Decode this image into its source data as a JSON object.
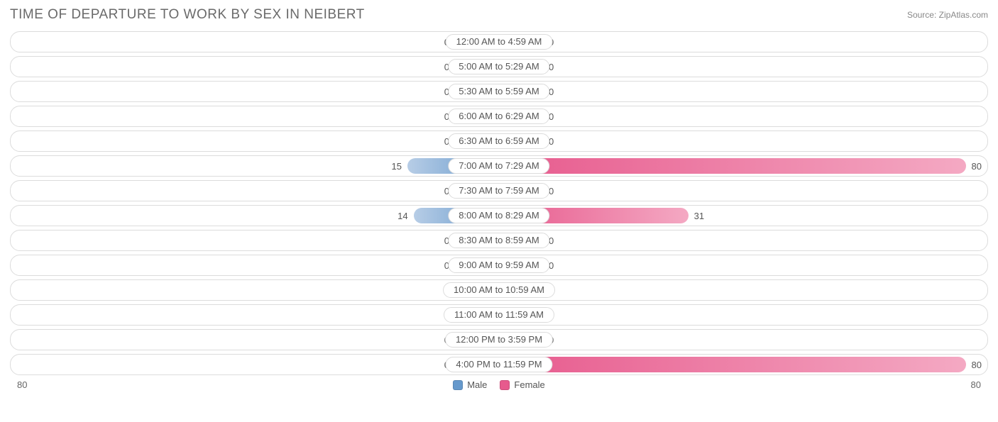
{
  "title": "TIME OF DEPARTURE TO WORK BY SEX IN NEIBERT",
  "source": "Source: ZipAtlas.com",
  "axis_max": 80,
  "axis_left_label": "80",
  "axis_right_label": "80",
  "colors": {
    "male_fill": "#6699cc",
    "male_fill_light": "#b7cde6",
    "female_fill": "#e75a8d",
    "female_fill_light": "#f4a9c3",
    "row_border": "#dcdcdc",
    "text": "#555555",
    "title_text": "#6a6a6a",
    "background": "#ffffff"
  },
  "legend": {
    "male": "Male",
    "female": "Female"
  },
  "min_bar_units": 5,
  "rows": [
    {
      "label": "12:00 AM to 4:59 AM",
      "male": 0,
      "female": 0
    },
    {
      "label": "5:00 AM to 5:29 AM",
      "male": 0,
      "female": 0
    },
    {
      "label": "5:30 AM to 5:59 AM",
      "male": 0,
      "female": 0
    },
    {
      "label": "6:00 AM to 6:29 AM",
      "male": 0,
      "female": 0
    },
    {
      "label": "6:30 AM to 6:59 AM",
      "male": 0,
      "female": 0
    },
    {
      "label": "7:00 AM to 7:29 AM",
      "male": 15,
      "female": 80
    },
    {
      "label": "7:30 AM to 7:59 AM",
      "male": 0,
      "female": 0
    },
    {
      "label": "8:00 AM to 8:29 AM",
      "male": 14,
      "female": 31
    },
    {
      "label": "8:30 AM to 8:59 AM",
      "male": 0,
      "female": 0
    },
    {
      "label": "9:00 AM to 9:59 AM",
      "male": 0,
      "female": 0
    },
    {
      "label": "10:00 AM to 10:59 AM",
      "male": 0,
      "female": 0
    },
    {
      "label": "11:00 AM to 11:59 AM",
      "male": 0,
      "female": 0
    },
    {
      "label": "12:00 PM to 3:59 PM",
      "male": 0,
      "female": 0
    },
    {
      "label": "4:00 PM to 11:59 PM",
      "male": 0,
      "female": 80
    }
  ]
}
